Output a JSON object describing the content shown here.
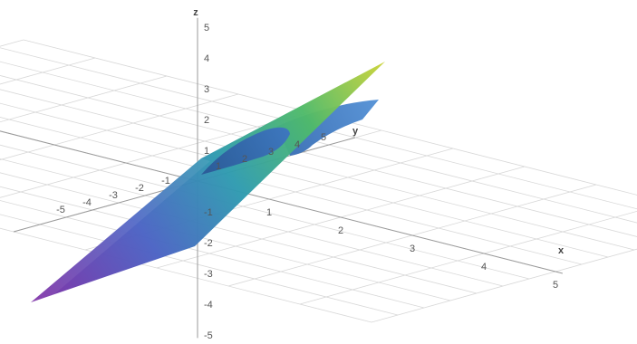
{
  "chart_data": {
    "type": "surface3d",
    "title": "",
    "axes": {
      "x": {
        "label": "x",
        "ticks": [
          "1",
          "2",
          "3",
          "4",
          "5"
        ]
      },
      "y": {
        "label": "y",
        "ticks": [
          "-5",
          "-4",
          "-3",
          "-2",
          "-1",
          "1",
          "2",
          "3",
          "4",
          "5"
        ]
      },
      "z": {
        "label": "z",
        "ticks": [
          "-5",
          "-4",
          "-3",
          "-2",
          "-1",
          "1",
          "2",
          "3",
          "4",
          "5"
        ]
      },
      "xlim": [
        -5,
        5
      ],
      "ylim": [
        -5,
        5
      ],
      "zlim": [
        -5,
        5
      ]
    },
    "grid": true,
    "surfaces": [
      {
        "kind": "plane",
        "colormap": [
          "#7b2fa6",
          "#4b63c4",
          "#2f9bb0",
          "#4fba6a",
          "#c7d33a"
        ]
      },
      {
        "kind": "curved-sheet",
        "color": "#4d86c9"
      }
    ]
  }
}
